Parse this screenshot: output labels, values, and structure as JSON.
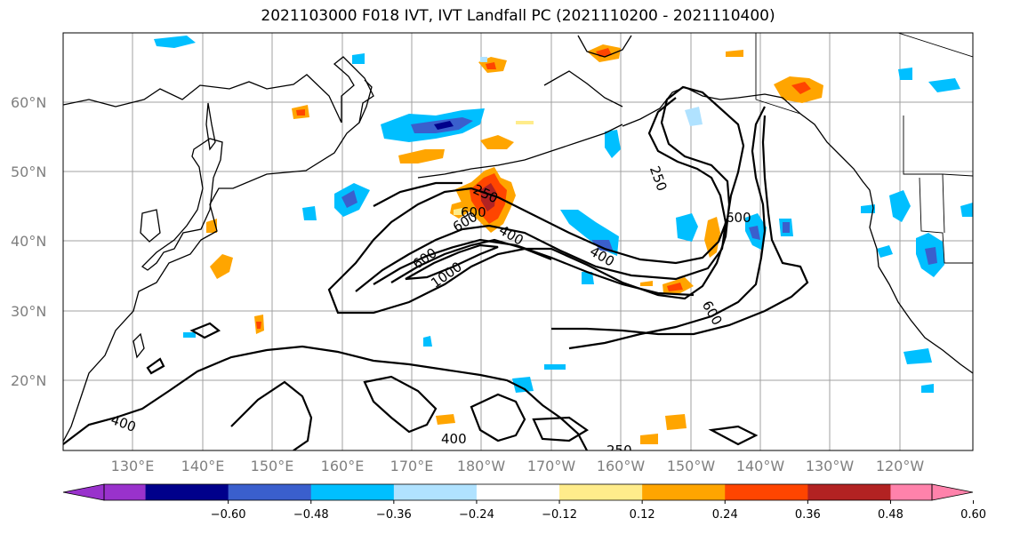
{
  "title": "2021103000 F018 IVT, IVT Landfall PC (2021110200 - 2021110400)",
  "lat_labels": [
    "60°N",
    "50°N",
    "40°N",
    "30°N",
    "20°N"
  ],
  "lon_labels": [
    "130°E",
    "140°E",
    "150°E",
    "160°E",
    "170°E",
    "180°W",
    "170°W",
    "160°W",
    "150°W",
    "140°W",
    "130°W",
    "120°W"
  ],
  "contour_labels": [
    "250",
    "600",
    "400",
    "600",
    "250",
    "600",
    "600",
    "1000",
    "400",
    "600",
    "400",
    "400",
    "250"
  ],
  "colorbar": {
    "colors": [
      "#9932cc",
      "#00008b",
      "#3a5fcd",
      "#00bfff",
      "#b0e2ff",
      "#ffffff",
      "#ffec8b",
      "#ffa500",
      "#ff4500",
      "#b22222",
      "#ff82ab"
    ],
    "ticks": [
      "−0.60",
      "−0.48",
      "−0.36",
      "−0.24",
      "−0.12",
      "0.12",
      "0.24",
      "0.36",
      "0.48",
      "0.60"
    ]
  }
}
